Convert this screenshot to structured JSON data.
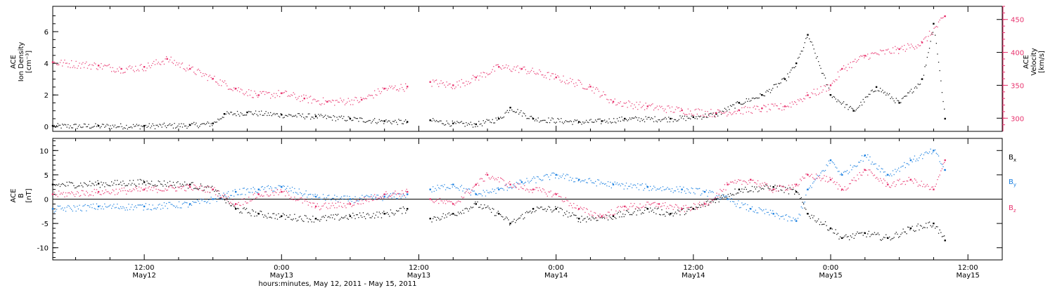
{
  "chart_data": [
    {
      "type": "scatter",
      "panel": "top",
      "x_range": [
        "2011-05-12T04:00",
        "2011-05-15T15:00"
      ],
      "ylabel_left": [
        "ACE",
        "Ion Density",
        "[cm⁻³]"
      ],
      "ylabel_right": [
        "ACE",
        "Velocity",
        "[km/s]"
      ],
      "ylim_left": [
        -0.3,
        7.6
      ],
      "ylim_right": [
        280,
        470
      ],
      "yticks_left": [
        0,
        2,
        4,
        6
      ],
      "yticks_right": [
        300,
        350,
        400,
        450
      ],
      "series": [
        {
          "axis": "left",
          "color": "#000000",
          "points": [
            [
              "2011-05-12T04:00",
              0.05
            ],
            [
              "2011-05-12T08:00",
              0.05
            ],
            [
              "2011-05-12T12:00",
              0.05
            ],
            [
              "2011-05-12T16:00",
              0.1
            ],
            [
              "2011-05-12T18:00",
              0.2
            ],
            [
              "2011-05-12T19:00",
              0.8
            ],
            [
              "2011-05-12T21:00",
              0.9
            ],
            [
              "2011-05-13T00:00",
              0.75
            ],
            [
              "2011-05-13T03:00",
              0.65
            ],
            [
              "2011-05-13T06:00",
              0.5
            ],
            [
              "2011-05-13T09:00",
              0.35
            ],
            [
              "2011-05-13T11:00",
              0.3
            ],
            [
              "2011-05-13T13:00",
              0.4
            ],
            [
              "2011-05-13T15:00",
              0.2
            ],
            [
              "2011-05-13T17:00",
              0.15
            ],
            [
              "2011-05-13T19:00",
              0.5
            ],
            [
              "2011-05-13T20:00",
              1.2
            ],
            [
              "2011-05-13T22:00",
              0.5
            ],
            [
              "2011-05-14T02:00",
              0.3
            ],
            [
              "2011-05-14T04:00",
              0.35
            ],
            [
              "2011-05-14T06:00",
              0.5
            ],
            [
              "2011-05-14T10:00",
              0.5
            ],
            [
              "2011-05-14T12:00",
              0.6
            ],
            [
              "2011-05-14T14:00",
              0.8
            ],
            [
              "2011-05-14T16:00",
              1.5
            ],
            [
              "2011-05-14T18:00",
              2.0
            ],
            [
              "2011-05-14T20:00",
              3.0
            ],
            [
              "2011-05-14T21:00",
              4.0
            ],
            [
              "2011-05-14T22:00",
              5.8
            ],
            [
              "2011-05-15T00:00",
              2.0
            ],
            [
              "2011-05-15T02:00",
              1.0
            ],
            [
              "2011-05-15T04:00",
              2.5
            ],
            [
              "2011-05-15T06:00",
              1.5
            ],
            [
              "2011-05-15T08:00",
              3.0
            ],
            [
              "2011-05-15T09:00",
              6.5
            ],
            [
              "2011-05-15T10:00",
              0.5
            ]
          ]
        },
        {
          "axis": "right",
          "color": "#e8336e",
          "points": [
            [
              "2011-05-12T04:00",
              385
            ],
            [
              "2011-05-12T08:00",
              380
            ],
            [
              "2011-05-12T10:00",
              375
            ],
            [
              "2011-05-12T12:00",
              378
            ],
            [
              "2011-05-12T14:00",
              390
            ],
            [
              "2011-05-12T16:00",
              375
            ],
            [
              "2011-05-12T18:00",
              360
            ],
            [
              "2011-05-12T20:00",
              345
            ],
            [
              "2011-05-12T22:00",
              335
            ],
            [
              "2011-05-13T00:00",
              338
            ],
            [
              "2011-05-13T02:00",
              330
            ],
            [
              "2011-05-13T04:00",
              325
            ],
            [
              "2011-05-13T07:00",
              328
            ],
            [
              "2011-05-13T09:00",
              345
            ],
            [
              "2011-05-13T11:00",
              348
            ],
            [
              "2011-05-13T13:00",
              355
            ],
            [
              "2011-05-13T15:00",
              350
            ],
            [
              "2011-05-13T17:00",
              362
            ],
            [
              "2011-05-13T19:00",
              378
            ],
            [
              "2011-05-13T21:00",
              375
            ],
            [
              "2011-05-14T00:00",
              362
            ],
            [
              "2011-05-14T03:00",
              348
            ],
            [
              "2011-05-14T05:00",
              325
            ],
            [
              "2011-05-14T08:00",
              318
            ],
            [
              "2011-05-14T11:00",
              312
            ],
            [
              "2011-05-14T14:00",
              308
            ],
            [
              "2011-05-14T16:00",
              312
            ],
            [
              "2011-05-14T18:00",
              315
            ],
            [
              "2011-05-14T20:00",
              318
            ],
            [
              "2011-05-14T22:00",
              335
            ],
            [
              "2011-05-15T00:00",
              350
            ],
            [
              "2011-05-15T01:00",
              375
            ],
            [
              "2011-05-15T03:00",
              395
            ],
            [
              "2011-05-15T06:00",
              405
            ],
            [
              "2011-05-15T08:00",
              415
            ],
            [
              "2011-05-15T10:00",
              455
            ]
          ]
        }
      ]
    },
    {
      "type": "scatter",
      "panel": "bottom",
      "x_range": [
        "2011-05-12T04:00",
        "2011-05-15T15:00"
      ],
      "ylabel": [
        "ACE",
        "B",
        "[nT]"
      ],
      "ylim": [
        -12.5,
        12.5
      ],
      "yticks": [
        -10,
        -5,
        0,
        5,
        10
      ],
      "zero_line": true,
      "xticks": [
        {
          "t": "2011-05-12T12:00",
          "time": "12:00",
          "date": "May12"
        },
        {
          "t": "2011-05-13T00:00",
          "time": "0:00",
          "date": "May13"
        },
        {
          "t": "2011-05-13T12:00",
          "time": "12:00",
          "date": "May13"
        },
        {
          "t": "2011-05-14T00:00",
          "time": "0:00",
          "date": "May14"
        },
        {
          "t": "2011-05-14T12:00",
          "time": "12:00",
          "date": "May14"
        },
        {
          "t": "2011-05-15T00:00",
          "time": "0:00",
          "date": "May15"
        },
        {
          "t": "2011-05-15T12:00",
          "time": "12:00",
          "date": "May15"
        }
      ],
      "xlabel": "hours:minutes, May 12, 2011 - May 15, 2011",
      "series": [
        {
          "name": "Bx",
          "label_base": "B",
          "label_sub": "x",
          "color": "#000000",
          "points": [
            [
              "2011-05-12T04:00",
              3.0
            ],
            [
              "2011-05-12T08:00",
              3.2
            ],
            [
              "2011-05-12T12:00",
              3.5
            ],
            [
              "2011-05-12T16:00",
              3.0
            ],
            [
              "2011-05-12T18:00",
              2.0
            ],
            [
              "2011-05-12T20:00",
              -2.0
            ],
            [
              "2011-05-12T22:00",
              -3.0
            ],
            [
              "2011-05-13T00:00",
              -3.5
            ],
            [
              "2011-05-13T03:00",
              -4.0
            ],
            [
              "2011-05-13T06:00",
              -3.5
            ],
            [
              "2011-05-13T09:00",
              -3.0
            ],
            [
              "2011-05-13T11:00",
              -2.0
            ],
            [
              "2011-05-13T13:00",
              -4.0
            ],
            [
              "2011-05-13T15:00",
              -3.0
            ],
            [
              "2011-05-13T17:00",
              -1.0
            ],
            [
              "2011-05-13T19:00",
              -3.0
            ],
            [
              "2011-05-13T20:00",
              -5.0
            ],
            [
              "2011-05-13T22:00",
              -2.0
            ],
            [
              "2011-05-14T00:00",
              -2.0
            ],
            [
              "2011-05-14T02:00",
              -4.0
            ],
            [
              "2011-05-14T05:00",
              -3.5
            ],
            [
              "2011-05-14T08:00",
              -2.0
            ],
            [
              "2011-05-14T10:00",
              -3.0
            ],
            [
              "2011-05-14T12:00",
              -2.0
            ],
            [
              "2011-05-14T14:00",
              0.0
            ],
            [
              "2011-05-14T16:00",
              2.0
            ],
            [
              "2011-05-14T19:00",
              2.5
            ],
            [
              "2011-05-14T21:00",
              1.5
            ],
            [
              "2011-05-14T22:00",
              -3.0
            ],
            [
              "2011-05-15T00:00",
              -6.0
            ],
            [
              "2011-05-15T01:00",
              -8.0
            ],
            [
              "2011-05-15T03:00",
              -7.0
            ],
            [
              "2011-05-15T05:00",
              -8.0
            ],
            [
              "2011-05-15T07:00",
              -6.0
            ],
            [
              "2011-05-15T09:00",
              -5.0
            ],
            [
              "2011-05-15T10:00",
              -8.5
            ]
          ]
        },
        {
          "name": "By",
          "label_base": "B",
          "label_sub": "y",
          "color": "#1a7fe0",
          "points": [
            [
              "2011-05-12T04:00",
              -2.0
            ],
            [
              "2011-05-12T08:00",
              -1.5
            ],
            [
              "2011-05-12T12:00",
              -1.5
            ],
            [
              "2011-05-12T16:00",
              -1.0
            ],
            [
              "2011-05-12T18:00",
              0.0
            ],
            [
              "2011-05-12T20:00",
              1.5
            ],
            [
              "2011-05-12T22:00",
              2.0
            ],
            [
              "2011-05-13T00:00",
              2.5
            ],
            [
              "2011-05-13T03:00",
              0.5
            ],
            [
              "2011-05-13T06:00",
              0.0
            ],
            [
              "2011-05-13T09:00",
              0.5
            ],
            [
              "2011-05-13T11:00",
              1.0
            ],
            [
              "2011-05-13T13:00",
              2.0
            ],
            [
              "2011-05-13T15:00",
              3.0
            ],
            [
              "2011-05-13T17:00",
              1.0
            ],
            [
              "2011-05-13T19:00",
              2.0
            ],
            [
              "2011-05-13T21:00",
              3.5
            ],
            [
              "2011-05-14T00:00",
              5.0
            ],
            [
              "2011-05-14T02:00",
              4.0
            ],
            [
              "2011-05-14T05:00",
              3.0
            ],
            [
              "2011-05-14T08:00",
              2.5
            ],
            [
              "2011-05-14T11:00",
              2.0
            ],
            [
              "2011-05-14T13:00",
              1.5
            ],
            [
              "2011-05-14T15:00",
              0.0
            ],
            [
              "2011-05-14T17:00",
              -2.0
            ],
            [
              "2011-05-14T19:00",
              -3.0
            ],
            [
              "2011-05-14T21:00",
              -4.5
            ],
            [
              "2011-05-14T22:00",
              2.0
            ],
            [
              "2011-05-15T00:00",
              8.0
            ],
            [
              "2011-05-15T01:00",
              5.0
            ],
            [
              "2011-05-15T03:00",
              9.0
            ],
            [
              "2011-05-15T05:00",
              5.0
            ],
            [
              "2011-05-15T07:00",
              8.0
            ],
            [
              "2011-05-15T09:00",
              10.0
            ],
            [
              "2011-05-15T10:00",
              6.0
            ]
          ]
        },
        {
          "name": "Bz",
          "label_base": "B",
          "label_sub": "z",
          "color": "#e8336e",
          "points": [
            [
              "2011-05-12T04:00",
              1.0
            ],
            [
              "2011-05-12T08:00",
              1.5
            ],
            [
              "2011-05-12T12:00",
              2.0
            ],
            [
              "2011-05-12T16:00",
              2.5
            ],
            [
              "2011-05-12T18:00",
              2.0
            ],
            [
              "2011-05-12T20:00",
              -1.0
            ],
            [
              "2011-05-12T22:00",
              1.0
            ],
            [
              "2011-05-13T00:00",
              1.5
            ],
            [
              "2011-05-13T03:00",
              -1.5
            ],
            [
              "2011-05-13T06:00",
              -1.0
            ],
            [
              "2011-05-13T09:00",
              1.0
            ],
            [
              "2011-05-13T11:00",
              1.5
            ],
            [
              "2011-05-13T13:00",
              0.0
            ],
            [
              "2011-05-13T15:00",
              -1.0
            ],
            [
              "2011-05-13T17:00",
              3.0
            ],
            [
              "2011-05-13T18:00",
              5.0
            ],
            [
              "2011-05-13T20:00",
              3.0
            ],
            [
              "2011-05-13T22:00",
              2.0
            ],
            [
              "2011-05-14T00:00",
              1.0
            ],
            [
              "2011-05-14T02:00",
              -2.0
            ],
            [
              "2011-05-14T04:00",
              -3.5
            ],
            [
              "2011-05-14T06:00",
              -1.5
            ],
            [
              "2011-05-14T09:00",
              -1.0
            ],
            [
              "2011-05-14T11:00",
              -2.0
            ],
            [
              "2011-05-14T13:00",
              -1.0
            ],
            [
              "2011-05-14T15:00",
              3.0
            ],
            [
              "2011-05-14T17:00",
              4.0
            ],
            [
              "2011-05-14T19:00",
              2.0
            ],
            [
              "2011-05-14T21:00",
              3.0
            ],
            [
              "2011-05-14T22:00",
              5.0
            ],
            [
              "2011-05-15T00:00",
              4.0
            ],
            [
              "2011-05-15T01:00",
              2.0
            ],
            [
              "2011-05-15T03:00",
              6.0
            ],
            [
              "2011-05-15T05:00",
              3.0
            ],
            [
              "2011-05-15T07:00",
              4.0
            ],
            [
              "2011-05-15T09:00",
              2.0
            ],
            [
              "2011-05-15T10:00",
              8.0
            ]
          ]
        }
      ]
    }
  ]
}
